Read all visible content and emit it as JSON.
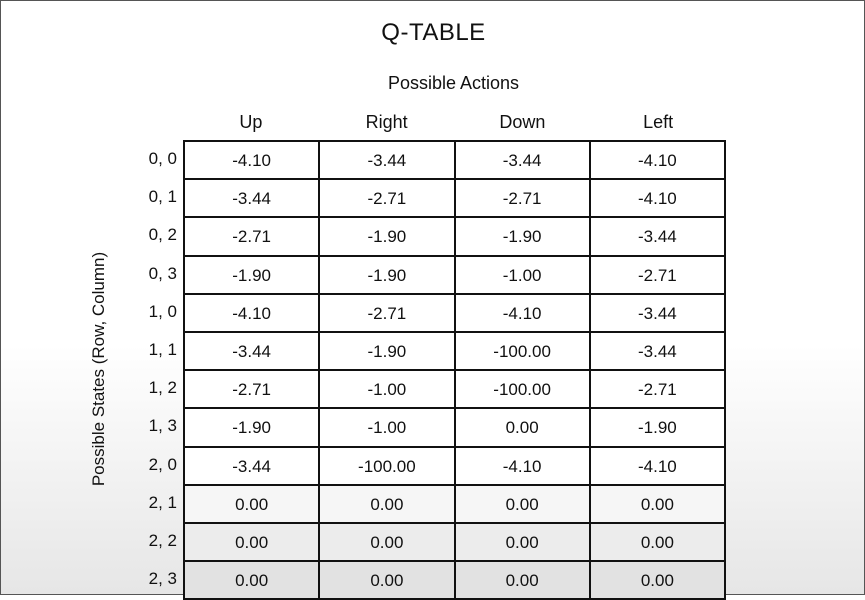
{
  "title": "Q-TABLE",
  "subtitle": "Possible Actions",
  "y_axis_label": "Possible States (Row, Column)",
  "actions": [
    "Up",
    "Right",
    "Down",
    "Left"
  ],
  "states": [
    "0, 0",
    "0, 1",
    "0, 2",
    "0, 3",
    "1, 0",
    "1, 1",
    "1, 2",
    "1, 3",
    "2, 0",
    "2, 1",
    "2, 2",
    "2, 3"
  ],
  "rows": [
    [
      "-4.10",
      "-3.44",
      "-3.44",
      "-4.10"
    ],
    [
      "-3.44",
      "-2.71",
      "-2.71",
      "-4.10"
    ],
    [
      "-2.71",
      "-1.90",
      "-1.90",
      "-3.44"
    ],
    [
      "-1.90",
      "-1.90",
      "-1.00",
      "-2.71"
    ],
    [
      "-4.10",
      "-2.71",
      "-4.10",
      "-3.44"
    ],
    [
      "-3.44",
      "-1.90",
      "-100.00",
      "-3.44"
    ],
    [
      "-2.71",
      "-1.00",
      "-100.00",
      "-2.71"
    ],
    [
      "-1.90",
      "-1.00",
      "0.00",
      "-1.90"
    ],
    [
      "-3.44",
      "-100.00",
      "-4.10",
      "-4.10"
    ],
    [
      "0.00",
      "0.00",
      "0.00",
      "0.00"
    ],
    [
      "0.00",
      "0.00",
      "0.00",
      "0.00"
    ],
    [
      "0.00",
      "0.00",
      "0.00",
      "0.00"
    ]
  ]
}
